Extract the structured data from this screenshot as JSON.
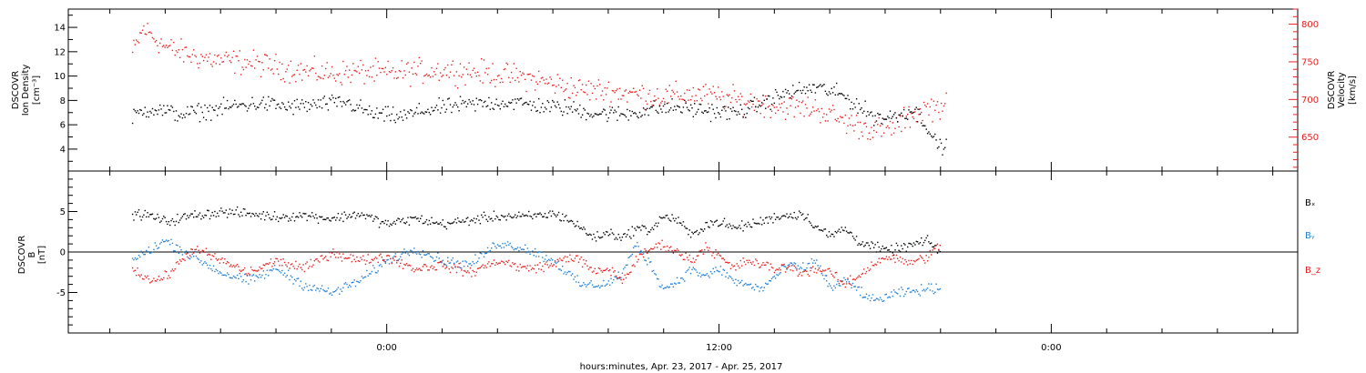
{
  "colors": {
    "black": "#000000",
    "red": "#e8211f",
    "blue": "#1f7fd6"
  },
  "chart_data": [
    {
      "type": "scatter",
      "panel": "top",
      "ylabel_left": [
        "DSCOVR",
        "Ion Density",
        "[cm⁻³]"
      ],
      "ylabel_right": [
        "DSCOVR",
        "Velocity",
        "[km/s]"
      ],
      "ylim_left": [
        2.2,
        15.5
      ],
      "yticks_left": [
        "4",
        "6",
        "8",
        "10",
        "12",
        "14"
      ],
      "ylim_right": [
        605,
        820
      ],
      "yticks_right": [
        "650",
        "700",
        "750",
        "800"
      ],
      "series": [
        {
          "axis": "left",
          "color": "#000000",
          "segments": [
            [
              -9.2,
              6.8
            ],
            [
              -8.5,
              7.4
            ],
            [
              -7.5,
              6.9
            ],
            [
              -6.5,
              7.2
            ],
            [
              -5.5,
              7.6
            ],
            [
              -4.5,
              7.8
            ],
            [
              -3.5,
              7.5
            ],
            [
              -2.5,
              7.7
            ],
            [
              -1.5,
              7.9
            ],
            [
              -0.5,
              6.9
            ],
            [
              0.5,
              6.7
            ],
            [
              1.5,
              7.3
            ],
            [
              2.5,
              7.6
            ],
            [
              3.5,
              7.8
            ],
            [
              4.5,
              7.9
            ],
            [
              5.5,
              7.6
            ],
            [
              6.5,
              7.4
            ],
            [
              7.5,
              7.0
            ],
            [
              8.5,
              6.9
            ],
            [
              9.5,
              7.3
            ],
            [
              10.5,
              7.5
            ],
            [
              11.5,
              7.2
            ],
            [
              12.5,
              7.0
            ],
            [
              13.0,
              7.3
            ],
            [
              13.5,
              7.8
            ],
            [
              14.5,
              8.7
            ],
            [
              15.5,
              9.1
            ],
            [
              16.0,
              8.8
            ],
            [
              16.5,
              8.4
            ],
            [
              17.0,
              7.6
            ],
            [
              17.5,
              6.8
            ],
            [
              18.0,
              6.6
            ],
            [
              18.5,
              6.9
            ],
            [
              19.0,
              7.3
            ],
            [
              19.5,
              6.0
            ],
            [
              19.8,
              4.5
            ],
            [
              20.2,
              4.1
            ]
          ]
        },
        {
          "axis": "right",
          "color": "#e8211f",
          "segments": [
            [
              -9.2,
              762
            ],
            [
              -8.8,
              795
            ],
            [
              -8.0,
              770
            ],
            [
              -7.0,
              758
            ],
            [
              -6.0,
              752
            ],
            [
              -5.0,
              750
            ],
            [
              -4.0,
              744
            ],
            [
              -3.0,
              738
            ],
            [
              -2.0,
              735
            ],
            [
              -1.0,
              738
            ],
            [
              0.0,
              735
            ],
            [
              1.0,
              738
            ],
            [
              2.0,
              740
            ],
            [
              3.0,
              738
            ],
            [
              4.0,
              734
            ],
            [
              5.0,
              730
            ],
            [
              6.0,
              722
            ],
            [
              7.0,
              714
            ],
            [
              8.0,
              712
            ],
            [
              9.0,
              708
            ],
            [
              10.0,
              705
            ],
            [
              11.0,
              708
            ],
            [
              12.0,
              704
            ],
            [
              13.0,
              698
            ],
            [
              14.0,
              692
            ],
            [
              15.0,
              690
            ],
            [
              15.5,
              689
            ],
            [
              16.0,
              680
            ],
            [
              16.5,
              672
            ],
            [
              17.0,
              666
            ],
            [
              17.5,
              662
            ],
            [
              18.0,
              660
            ],
            [
              18.5,
              668
            ],
            [
              19.0,
              682
            ],
            [
              19.5,
              690
            ],
            [
              20.2,
              692
            ]
          ]
        }
      ]
    },
    {
      "type": "scatter",
      "panel": "bottom",
      "ylabel_left": [
        "DSCOVR",
        "B",
        "[nT]"
      ],
      "ylim": [
        -10,
        10
      ],
      "yticks": [
        "-5",
        "0",
        "5"
      ],
      "zero_line": true,
      "legend": [
        {
          "label": "Bₓ",
          "color": "#000000"
        },
        {
          "label": "Bᵧ",
          "color": "#1f7fd6"
        },
        {
          "label": "B_z",
          "color": "#e8211f"
        }
      ],
      "series": [
        {
          "name": "Bx",
          "color": "#000000",
          "segments": [
            [
              -9.2,
              4.8
            ],
            [
              -8.5,
              4.5
            ],
            [
              -8.0,
              3.8
            ],
            [
              -7.0,
              4.6
            ],
            [
              -6.0,
              5.0
            ],
            [
              -5.0,
              4.8
            ],
            [
              -4.0,
              4.4
            ],
            [
              -3.0,
              4.6
            ],
            [
              -2.0,
              4.2
            ],
            [
              -1.0,
              4.8
            ],
            [
              0.0,
              3.5
            ],
            [
              1.0,
              4.2
            ],
            [
              2.0,
              3.5
            ],
            [
              3.0,
              4.0
            ],
            [
              4.0,
              4.5
            ],
            [
              5.0,
              4.4
            ],
            [
              6.0,
              4.8
            ],
            [
              6.5,
              4.2
            ],
            [
              7.0,
              3.0
            ],
            [
              7.5,
              1.8
            ],
            [
              8.0,
              2.5
            ],
            [
              8.5,
              1.8
            ],
            [
              9.0,
              3.0
            ],
            [
              9.5,
              2.8
            ],
            [
              10.0,
              4.5
            ],
            [
              10.5,
              4.0
            ],
            [
              11.0,
              2.0
            ],
            [
              11.5,
              3.5
            ],
            [
              12.0,
              3.8
            ],
            [
              12.5,
              3.0
            ],
            [
              13.0,
              3.4
            ],
            [
              13.5,
              3.8
            ],
            [
              14.0,
              4.4
            ],
            [
              14.5,
              4.6
            ],
            [
              15.0,
              4.8
            ],
            [
              15.5,
              3.2
            ],
            [
              16.0,
              2.0
            ],
            [
              16.5,
              3.0
            ],
            [
              17.0,
              1.5
            ],
            [
              17.5,
              0.8
            ],
            [
              18.0,
              0.2
            ],
            [
              18.5,
              0.5
            ],
            [
              19.0,
              1.0
            ],
            [
              19.5,
              1.4
            ],
            [
              20.0,
              0.2
            ]
          ]
        },
        {
          "name": "By",
          "color": "#1f7fd6",
          "segments": [
            [
              -9.2,
              -1.0
            ],
            [
              -8.5,
              0.5
            ],
            [
              -8.0,
              1.5
            ],
            [
              -7.0,
              -0.5
            ],
            [
              -6.0,
              -2.5
            ],
            [
              -5.0,
              -3.5
            ],
            [
              -4.0,
              -2.0
            ],
            [
              -3.0,
              -4.0
            ],
            [
              -2.0,
              -5.0
            ],
            [
              -1.0,
              -3.5
            ],
            [
              0.0,
              -1.0
            ],
            [
              1.0,
              0.5
            ],
            [
              2.0,
              -1.0
            ],
            [
              3.0,
              -1.5
            ],
            [
              4.0,
              1.2
            ],
            [
              5.0,
              0.5
            ],
            [
              6.0,
              -1.0
            ],
            [
              6.5,
              -2.5
            ],
            [
              7.0,
              -4.0
            ],
            [
              7.5,
              -4.0
            ],
            [
              8.0,
              -3.8
            ],
            [
              8.5,
              -2.5
            ],
            [
              9.0,
              1.0
            ],
            [
              9.5,
              -1.5
            ],
            [
              10.0,
              -4.5
            ],
            [
              10.5,
              -3.5
            ],
            [
              11.0,
              -2.0
            ],
            [
              11.5,
              -3.0
            ],
            [
              12.0,
              -2.0
            ],
            [
              12.5,
              -3.5
            ],
            [
              13.0,
              -4.0
            ],
            [
              13.5,
              -4.5
            ],
            [
              14.0,
              -3.0
            ],
            [
              14.5,
              -1.5
            ],
            [
              15.0,
              -2.0
            ],
            [
              15.5,
              -1.0
            ],
            [
              16.0,
              -4.5
            ],
            [
              16.5,
              -3.5
            ],
            [
              17.0,
              -4.5
            ],
            [
              17.5,
              -6.0
            ],
            [
              18.0,
              -5.5
            ],
            [
              18.5,
              -5.0
            ],
            [
              19.0,
              -4.8
            ],
            [
              19.5,
              -4.5
            ],
            [
              20.0,
              -4.3
            ]
          ]
        },
        {
          "name": "Bz",
          "color": "#e8211f",
          "segments": [
            [
              -9.2,
              -2.0
            ],
            [
              -8.5,
              -3.5
            ],
            [
              -8.0,
              -3.0
            ],
            [
              -7.0,
              0.5
            ],
            [
              -6.0,
              -1.0
            ],
            [
              -5.0,
              -2.5
            ],
            [
              -4.0,
              -1.0
            ],
            [
              -3.0,
              -2.0
            ],
            [
              -2.0,
              0.0
            ],
            [
              -1.0,
              -1.0
            ],
            [
              0.0,
              -0.5
            ],
            [
              1.0,
              -2.0
            ],
            [
              2.0,
              -1.5
            ],
            [
              3.0,
              -2.5
            ],
            [
              4.0,
              -1.0
            ],
            [
              5.0,
              -2.0
            ],
            [
              6.0,
              -1.5
            ],
            [
              6.5,
              -0.5
            ],
            [
              7.0,
              -1.0
            ],
            [
              7.5,
              -2.5
            ],
            [
              8.0,
              -2.0
            ],
            [
              8.5,
              -3.5
            ],
            [
              9.0,
              -1.0
            ],
            [
              9.5,
              0.5
            ],
            [
              10.0,
              1.0
            ],
            [
              10.5,
              0.0
            ],
            [
              11.0,
              -1.0
            ],
            [
              11.5,
              0.8
            ],
            [
              12.0,
              -0.5
            ],
            [
              12.5,
              -2.0
            ],
            [
              13.0,
              -1.0
            ],
            [
              13.5,
              -1.5
            ],
            [
              14.0,
              -2.0
            ],
            [
              14.5,
              -1.8
            ],
            [
              15.0,
              -2.5
            ],
            [
              15.5,
              -2.0
            ],
            [
              16.0,
              -2.5
            ],
            [
              16.5,
              -4.0
            ],
            [
              17.0,
              -3.0
            ],
            [
              17.5,
              -1.5
            ],
            [
              18.0,
              -0.5
            ],
            [
              18.5,
              -1.0
            ],
            [
              19.0,
              -1.2
            ],
            [
              19.5,
              -0.5
            ],
            [
              20.0,
              1.0
            ]
          ]
        }
      ]
    }
  ],
  "xaxis": {
    "label": "hours:minutes, Apr. 23, 2017 - Apr. 25, 2017",
    "range_hours": [
      -11.5,
      32.9
    ],
    "major_ticks": [
      {
        "hour": 0,
        "label": "0:00"
      },
      {
        "hour": 12,
        "label": "12:00"
      },
      {
        "hour": 24,
        "label": "0:00"
      }
    ],
    "minor_tick_step_hours": 2
  }
}
